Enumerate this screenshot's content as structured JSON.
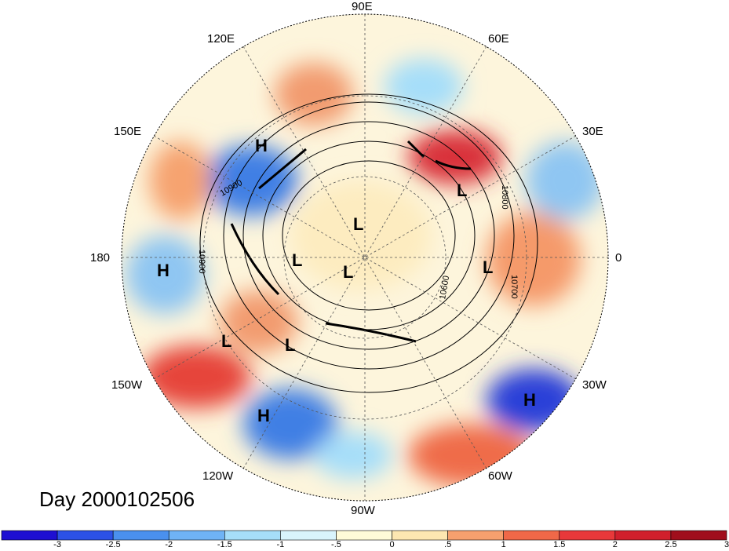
{
  "title": "Day 2000102506",
  "longitude_labels": [
    "90E",
    "60E",
    "120E",
    "30E",
    "150E",
    "180",
    "0",
    "150W",
    "30W",
    "120W",
    "60W",
    "90W"
  ],
  "pressure_labels": [
    "10900",
    "10900",
    "10800",
    "10700",
    "10600"
  ],
  "pressure_centers": [
    "H",
    "H",
    "H",
    "H",
    "L",
    "L",
    "L",
    "L",
    "L",
    "L",
    "L"
  ],
  "colorbar": {
    "colors": [
      "#1e0fd2",
      "#2c51e6",
      "#4a90ee",
      "#6fb3f5",
      "#a6def9",
      "#d9f4fc",
      "#fffbd8",
      "#fde7b1",
      "#f6a06e",
      "#f06848",
      "#e8383a",
      "#d01f2c",
      "#a00e1c"
    ],
    "tick_labels": [
      "-3",
      "-2.5",
      "-2",
      "-1.5",
      "-1",
      "-.5",
      "0",
      ".5",
      "1",
      "1.5",
      "2",
      "2.5",
      "3"
    ]
  }
}
